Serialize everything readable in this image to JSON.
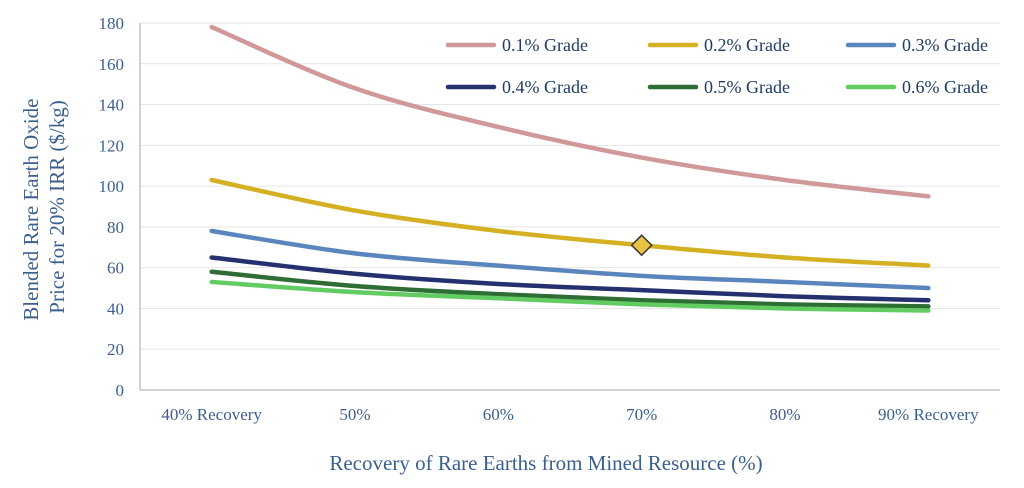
{
  "chart_data": {
    "type": "line",
    "xlabel": "Recovery of Rare Earths from Mined Resource (%)",
    "ylabel": [
      "Blended Rare Earth Oxide",
      "Price for 20% IRR ($/kg)"
    ],
    "x": [
      40,
      50,
      60,
      70,
      80,
      90
    ],
    "x_tick_labels": [
      "40% Recovery",
      "50%",
      "60%",
      "70%",
      "80%",
      "90% Recovery"
    ],
    "xlim": [
      35,
      95
    ],
    "ylim": [
      0,
      180
    ],
    "y_ticks": [
      0,
      20,
      40,
      60,
      80,
      100,
      120,
      140,
      160,
      180
    ],
    "grid": true,
    "legend_position": "top-right",
    "series": [
      {
        "name": "0.1% Grade",
        "color": "#d09898",
        "values": [
          178,
          148,
          129,
          114,
          103,
          95
        ]
      },
      {
        "name": "0.2% Grade",
        "color": "#d4b023",
        "values": [
          103,
          88,
          78,
          71,
          65,
          61
        ]
      },
      {
        "name": "0.3% Grade",
        "color": "#5b86bd",
        "values": [
          78,
          67,
          61,
          56,
          53,
          50
        ]
      },
      {
        "name": "0.4% Grade",
        "color": "#25306f",
        "values": [
          65,
          57,
          52,
          49,
          46,
          44
        ]
      },
      {
        "name": "0.5% Grade",
        "color": "#2e6e34",
        "values": [
          58,
          51,
          47,
          44,
          42,
          41
        ]
      },
      {
        "name": "0.6% Grade",
        "color": "#62cc62",
        "values": [
          53,
          48,
          45,
          42,
          40,
          39
        ]
      }
    ],
    "marker": {
      "x": 70,
      "y": 71,
      "shape": "diamond",
      "color": "#e8c245"
    }
  }
}
